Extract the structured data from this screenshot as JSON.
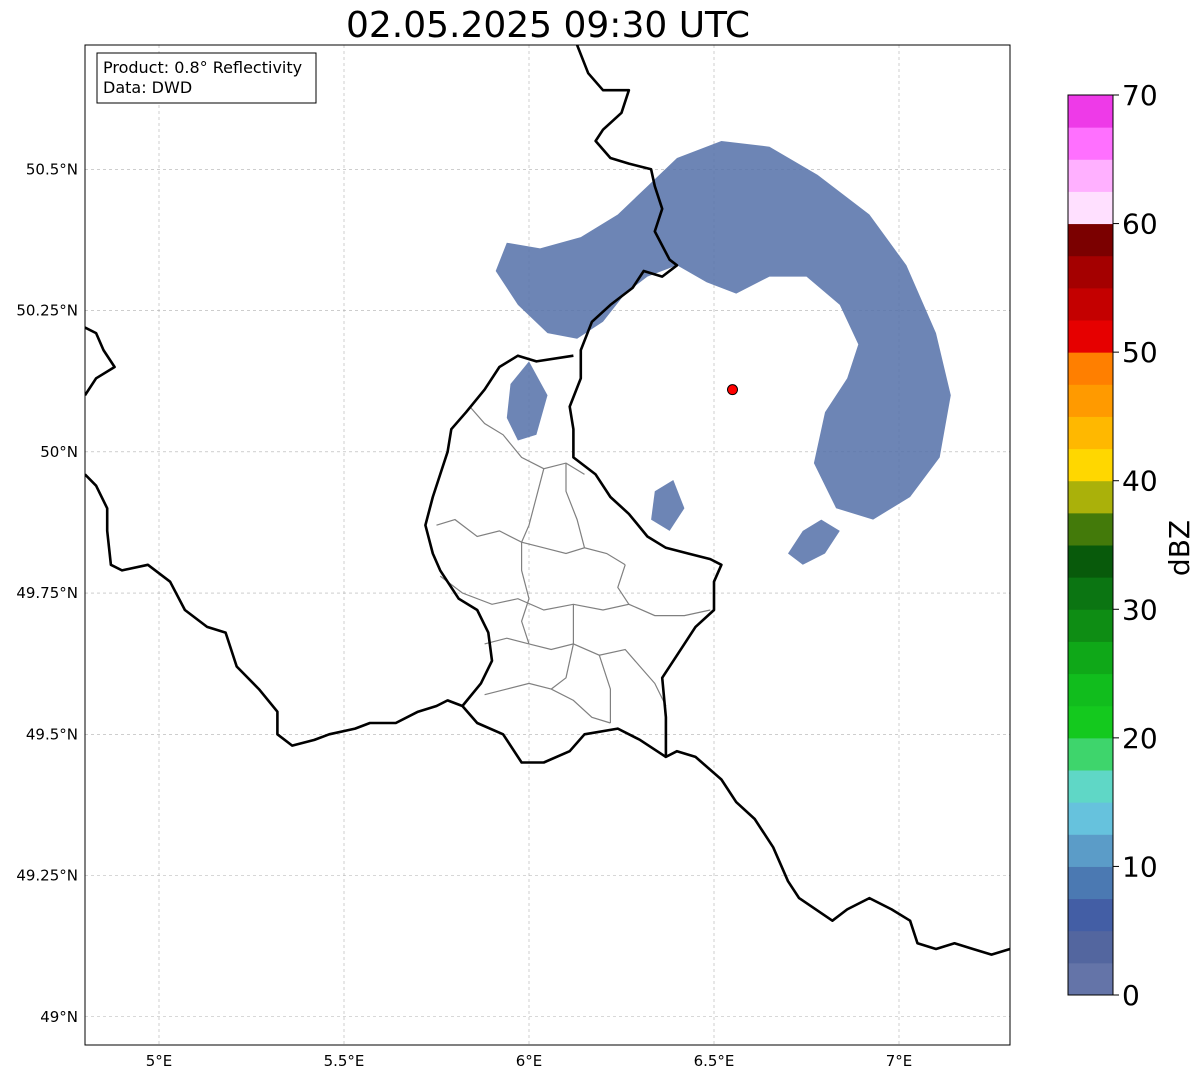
{
  "title": "02.05.2025 09:30 UTC",
  "info_box": {
    "product": "Product: 0.8° Reflectivity",
    "data": "Data: DWD"
  },
  "map": {
    "lon_range": [
      4.8,
      7.3
    ],
    "lat_range": [
      48.95,
      50.72
    ],
    "x_ticks": [
      {
        "value": 5.0,
        "label": "5°E"
      },
      {
        "value": 5.5,
        "label": "5.5°E"
      },
      {
        "value": 6.0,
        "label": "6°E"
      },
      {
        "value": 6.5,
        "label": "6.5°E"
      },
      {
        "value": 7.0,
        "label": "7°E"
      }
    ],
    "y_ticks": [
      {
        "value": 50.5,
        "label": "50.5°N"
      },
      {
        "value": 50.25,
        "label": "50.25°N"
      },
      {
        "value": 50.0,
        "label": "50°N"
      },
      {
        "value": 49.75,
        "label": "49.75°N"
      },
      {
        "value": 49.5,
        "label": "49.5°N"
      },
      {
        "value": 49.25,
        "label": "49.25°N"
      },
      {
        "value": 49.0,
        "label": "49°N"
      }
    ],
    "grid": true,
    "radar_site": {
      "lon": 6.55,
      "lat": 50.11,
      "color": "#ff0000"
    },
    "echo_color": "#5470a8",
    "border_color": "#000000",
    "district_color": "#808080",
    "national_border": [
      [
        6.13,
        50.72
      ],
      [
        6.16,
        50.67
      ],
      [
        6.2,
        50.64
      ],
      [
        6.27,
        50.64
      ],
      [
        6.25,
        50.6
      ],
      [
        6.2,
        50.57
      ],
      [
        6.18,
        50.55
      ],
      [
        6.22,
        50.52
      ],
      [
        6.27,
        50.51
      ],
      [
        6.33,
        50.5
      ],
      [
        6.34,
        50.47
      ],
      [
        6.36,
        50.43
      ],
      [
        6.34,
        50.39
      ],
      [
        6.38,
        50.34
      ],
      [
        6.4,
        50.33
      ],
      [
        6.36,
        50.31
      ],
      [
        6.31,
        50.32
      ],
      [
        6.28,
        50.29
      ],
      [
        6.22,
        50.26
      ],
      [
        6.17,
        50.23
      ],
      [
        6.14,
        50.18
      ],
      [
        6.14,
        50.13
      ],
      [
        6.11,
        50.08
      ],
      [
        6.12,
        50.04
      ],
      [
        6.12,
        49.99
      ],
      [
        6.18,
        49.96
      ],
      [
        6.22,
        49.92
      ],
      [
        6.27,
        49.89
      ],
      [
        6.32,
        49.85
      ],
      [
        6.37,
        49.83
      ],
      [
        6.43,
        49.82
      ],
      [
        6.49,
        49.81
      ],
      [
        6.52,
        49.8
      ],
      [
        6.5,
        49.77
      ],
      [
        6.5,
        49.72
      ],
      [
        6.45,
        49.69
      ],
      [
        6.42,
        49.66
      ],
      [
        6.36,
        49.6
      ],
      [
        6.37,
        49.53
      ],
      [
        6.37,
        49.46
      ],
      [
        6.4,
        49.47
      ],
      [
        6.45,
        49.46
      ],
      [
        6.52,
        49.42
      ],
      [
        6.56,
        49.38
      ],
      [
        6.61,
        49.35
      ],
      [
        6.66,
        49.3
      ],
      [
        6.7,
        49.24
      ],
      [
        6.73,
        49.21
      ],
      [
        6.82,
        49.17
      ],
      [
        6.86,
        49.19
      ],
      [
        6.92,
        49.21
      ],
      [
        6.98,
        49.19
      ],
      [
        7.03,
        49.17
      ],
      [
        7.05,
        49.13
      ],
      [
        7.1,
        49.12
      ],
      [
        7.15,
        49.13
      ],
      [
        7.2,
        49.12
      ],
      [
        7.25,
        49.11
      ],
      [
        7.3,
        49.12
      ]
    ],
    "national_border_2": [
      [
        6.37,
        49.46
      ],
      [
        6.3,
        49.49
      ],
      [
        6.24,
        49.51
      ],
      [
        6.15,
        49.5
      ],
      [
        6.11,
        49.47
      ],
      [
        6.04,
        49.45
      ],
      [
        5.98,
        49.45
      ],
      [
        5.93,
        49.5
      ],
      [
        5.86,
        49.52
      ],
      [
        5.82,
        49.55
      ],
      [
        5.78,
        49.56
      ],
      [
        5.75,
        49.55
      ],
      [
        5.7,
        49.54
      ],
      [
        5.64,
        49.52
      ],
      [
        5.57,
        49.52
      ],
      [
        5.53,
        49.51
      ],
      [
        5.46,
        49.5
      ],
      [
        5.42,
        49.49
      ],
      [
        5.36,
        49.48
      ],
      [
        5.32,
        49.5
      ],
      [
        5.32,
        49.54
      ],
      [
        5.27,
        49.58
      ],
      [
        5.21,
        49.62
      ],
      [
        5.18,
        49.68
      ],
      [
        5.13,
        49.69
      ],
      [
        5.07,
        49.72
      ],
      [
        5.03,
        49.77
      ],
      [
        4.97,
        49.8
      ],
      [
        4.9,
        49.79
      ],
      [
        4.87,
        49.8
      ],
      [
        4.86,
        49.86
      ],
      [
        4.86,
        49.9
      ],
      [
        4.83,
        49.94
      ],
      [
        4.8,
        49.96
      ]
    ],
    "national_border_3": [
      [
        4.8,
        50.1
      ],
      [
        4.83,
        50.13
      ],
      [
        4.88,
        50.15
      ],
      [
        4.85,
        50.18
      ],
      [
        4.83,
        50.21
      ],
      [
        4.8,
        50.22
      ]
    ],
    "luxembourg_border": [
      [
        6.12,
        50.17
      ],
      [
        6.02,
        50.16
      ],
      [
        5.97,
        50.17
      ],
      [
        5.92,
        50.15
      ],
      [
        5.88,
        50.11
      ],
      [
        5.83,
        50.07
      ],
      [
        5.79,
        50.04
      ],
      [
        5.78,
        50.0
      ],
      [
        5.76,
        49.96
      ],
      [
        5.74,
        49.92
      ],
      [
        5.72,
        49.87
      ],
      [
        5.74,
        49.82
      ],
      [
        5.76,
        49.79
      ],
      [
        5.81,
        49.74
      ],
      [
        5.86,
        49.72
      ],
      [
        5.89,
        49.68
      ],
      [
        5.9,
        49.63
      ],
      [
        5.87,
        49.59
      ],
      [
        5.82,
        49.55
      ]
    ],
    "district_lines": [
      [
        [
          5.84,
          50.08
        ],
        [
          5.88,
          50.05
        ],
        [
          5.93,
          50.03
        ],
        [
          5.98,
          49.99
        ],
        [
          6.04,
          49.97
        ],
        [
          6.1,
          49.98
        ],
        [
          6.15,
          49.96
        ]
      ],
      [
        [
          5.75,
          49.87
        ],
        [
          5.8,
          49.88
        ],
        [
          5.86,
          49.85
        ],
        [
          5.92,
          49.86
        ],
        [
          5.98,
          49.84
        ],
        [
          6.04,
          49.83
        ],
        [
          6.1,
          49.82
        ],
        [
          6.15,
          49.83
        ],
        [
          6.21,
          49.82
        ],
        [
          6.26,
          49.8
        ]
      ],
      [
        [
          6.04,
          49.97
        ],
        [
          6.02,
          49.92
        ],
        [
          6.0,
          49.87
        ],
        [
          5.98,
          49.84
        ]
      ],
      [
        [
          6.1,
          49.98
        ],
        [
          6.1,
          49.93
        ],
        [
          6.13,
          49.88
        ],
        [
          6.15,
          49.83
        ]
      ],
      [
        [
          5.76,
          49.78
        ],
        [
          5.82,
          49.75
        ],
        [
          5.9,
          49.73
        ],
        [
          5.97,
          49.74
        ],
        [
          6.04,
          49.72
        ],
        [
          6.12,
          49.73
        ],
        [
          6.2,
          49.72
        ],
        [
          6.27,
          49.73
        ],
        [
          6.34,
          49.71
        ],
        [
          6.42,
          49.71
        ],
        [
          6.49,
          49.72
        ]
      ],
      [
        [
          5.88,
          49.66
        ],
        [
          5.94,
          49.67
        ],
        [
          6.0,
          49.66
        ],
        [
          6.06,
          49.65
        ],
        [
          6.12,
          49.66
        ],
        [
          6.19,
          49.64
        ],
        [
          6.26,
          49.65
        ],
        [
          6.3,
          49.62
        ],
        [
          6.34,
          49.59
        ],
        [
          6.37,
          49.55
        ]
      ],
      [
        [
          5.88,
          49.57
        ],
        [
          5.94,
          49.58
        ],
        [
          6.0,
          49.59
        ],
        [
          6.06,
          49.58
        ],
        [
          6.12,
          49.56
        ],
        [
          6.17,
          49.53
        ],
        [
          6.22,
          49.52
        ]
      ],
      [
        [
          5.98,
          49.84
        ],
        [
          5.98,
          49.79
        ],
        [
          6.0,
          49.74
        ],
        [
          5.98,
          49.7
        ],
        [
          6.0,
          49.66
        ]
      ],
      [
        [
          6.26,
          49.8
        ],
        [
          6.24,
          49.76
        ],
        [
          6.27,
          49.73
        ]
      ],
      [
        [
          6.12,
          49.73
        ],
        [
          6.12,
          49.66
        ],
        [
          6.1,
          49.6
        ],
        [
          6.06,
          49.58
        ]
      ],
      [
        [
          6.19,
          49.64
        ],
        [
          6.22,
          49.58
        ],
        [
          6.22,
          49.52
        ]
      ]
    ],
    "echo_polygons": [
      [
        [
          6.4,
          50.52
        ],
        [
          6.52,
          50.55
        ],
        [
          6.65,
          50.54
        ],
        [
          6.78,
          50.49
        ],
        [
          6.92,
          50.42
        ],
        [
          7.02,
          50.33
        ],
        [
          7.1,
          50.21
        ],
        [
          7.14,
          50.1
        ],
        [
          7.11,
          49.99
        ],
        [
          7.03,
          49.92
        ],
        [
          6.93,
          49.88
        ],
        [
          6.83,
          49.9
        ],
        [
          6.77,
          49.98
        ],
        [
          6.8,
          50.07
        ],
        [
          6.86,
          50.13
        ],
        [
          6.89,
          50.19
        ],
        [
          6.84,
          50.26
        ],
        [
          6.75,
          50.31
        ],
        [
          6.65,
          50.31
        ],
        [
          6.56,
          50.28
        ],
        [
          6.48,
          50.3
        ],
        [
          6.4,
          50.33
        ],
        [
          6.32,
          50.31
        ],
        [
          6.26,
          50.28
        ],
        [
          6.2,
          50.23
        ],
        [
          6.13,
          50.2
        ],
        [
          6.05,
          50.21
        ],
        [
          5.97,
          50.26
        ],
        [
          5.91,
          50.32
        ],
        [
          5.94,
          50.37
        ],
        [
          6.03,
          50.36
        ],
        [
          6.14,
          50.38
        ],
        [
          6.24,
          50.42
        ],
        [
          6.32,
          50.47
        ]
      ],
      [
        [
          6.74,
          49.86
        ],
        [
          6.79,
          49.88
        ],
        [
          6.84,
          49.86
        ],
        [
          6.8,
          49.82
        ],
        [
          6.74,
          49.8
        ],
        [
          6.7,
          49.82
        ]
      ],
      [
        [
          5.95,
          50.12
        ],
        [
          6.0,
          50.16
        ],
        [
          6.05,
          50.1
        ],
        [
          6.02,
          50.03
        ],
        [
          5.97,
          50.02
        ],
        [
          5.94,
          50.06
        ]
      ],
      [
        [
          6.34,
          49.93
        ],
        [
          6.39,
          49.95
        ],
        [
          6.42,
          49.9
        ],
        [
          6.38,
          49.86
        ],
        [
          6.33,
          49.88
        ]
      ]
    ]
  },
  "colorbar": {
    "label": "dBZ",
    "min": 0,
    "max": 70,
    "ticks": [
      {
        "value": 0,
        "label": "0"
      },
      {
        "value": 10,
        "label": "10"
      },
      {
        "value": 20,
        "label": "20"
      },
      {
        "value": 30,
        "label": "30"
      },
      {
        "value": 40,
        "label": "40"
      },
      {
        "value": 50,
        "label": "50"
      },
      {
        "value": 60,
        "label": "60"
      },
      {
        "value": 70,
        "label": "70"
      }
    ],
    "colors": [
      "#6474a8",
      "#53669f",
      "#435ea5",
      "#4b79b2",
      "#5b9cc8",
      "#66c2dd",
      "#5fd7c6",
      "#3ed56c",
      "#14c91e",
      "#11bd1d",
      "#0fa818",
      "#0e8d14",
      "#0b7512",
      "#085a0b",
      "#437a0a",
      "#aab10a",
      "#ffd700",
      "#ffb800",
      "#ff9a00",
      "#ff7f00",
      "#e60000",
      "#c40000",
      "#a40000",
      "#7b0000",
      "#ffe0ff",
      "#ffb0ff",
      "#ff70ff",
      "#ee3ae8"
    ]
  }
}
